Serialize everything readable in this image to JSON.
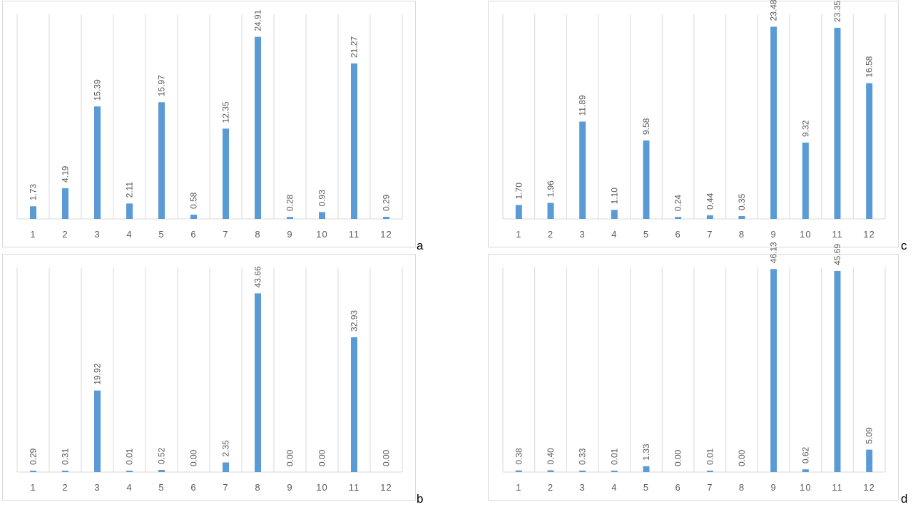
{
  "charts": {
    "a": {
      "panel_label": "a",
      "chart_data": {
        "type": "bar",
        "categories": [
          "1",
          "2",
          "3",
          "4",
          "5",
          "6",
          "7",
          "8",
          "9",
          "10",
          "11",
          "12"
        ],
        "values": [
          1.73,
          4.19,
          15.39,
          2.11,
          15.97,
          0.58,
          12.35,
          24.91,
          0.28,
          0.93,
          21.27,
          0.29
        ],
        "value_labels": [
          "1.73",
          "4.19",
          "15.39",
          "2.11",
          "15.97",
          "0.58",
          "12.35",
          "24.91",
          "0.28",
          "0.93",
          "21.27",
          "0.29"
        ],
        "title": "",
        "xlabel": "",
        "ylabel": "",
        "ylim": [
          0,
          28
        ],
        "grid": "vertical",
        "bar_color": "#5b9bd5"
      }
    },
    "b": {
      "panel_label": "b",
      "chart_data": {
        "type": "bar",
        "categories": [
          "1",
          "2",
          "3",
          "4",
          "5",
          "6",
          "7",
          "8",
          "9",
          "10",
          "11",
          "12"
        ],
        "values": [
          0.29,
          0.31,
          19.92,
          0.01,
          0.52,
          0.0,
          2.35,
          43.66,
          0.0,
          0.0,
          32.93,
          0.0
        ],
        "value_labels": [
          "0.29",
          "0.31",
          "19.92",
          "0.01",
          "0.52",
          "0.00",
          "2.35",
          "43.66",
          "0.00",
          "0.00",
          "32.93",
          "0.00"
        ],
        "title": "",
        "xlabel": "",
        "ylabel": "",
        "ylim": [
          0,
          50
        ],
        "grid": "vertical",
        "bar_color": "#5b9bd5"
      }
    },
    "c": {
      "panel_label": "c",
      "chart_data": {
        "type": "bar",
        "categories": [
          "1",
          "2",
          "3",
          "4",
          "5",
          "6",
          "7",
          "8",
          "9",
          "10",
          "11",
          "12"
        ],
        "values": [
          1.7,
          1.96,
          11.89,
          1.1,
          9.58,
          0.24,
          0.44,
          0.35,
          23.48,
          9.32,
          23.35,
          16.58
        ],
        "value_labels": [
          "1.70",
          "1.96",
          "11.89",
          "1.10",
          "9.58",
          "0.24",
          "0.44",
          "0.35",
          "23.48",
          "9.32",
          "23.35",
          "16.58"
        ],
        "title": "",
        "xlabel": "",
        "ylabel": "",
        "ylim": [
          0,
          25
        ],
        "grid": "vertical",
        "bar_color": "#5b9bd5"
      }
    },
    "d": {
      "panel_label": "d",
      "chart_data": {
        "type": "bar",
        "categories": [
          "1",
          "2",
          "3",
          "4",
          "5",
          "6",
          "7",
          "8",
          "9",
          "10",
          "11",
          "12"
        ],
        "values": [
          0.38,
          0.4,
          0.33,
          0.01,
          1.33,
          0.0,
          0.01,
          0.0,
          46.13,
          0.62,
          45.69,
          5.09
        ],
        "value_labels": [
          "0.38",
          "0.40",
          "0.33",
          "0.01",
          "1.33",
          "0.00",
          "0.01",
          "0.00",
          "46.13",
          "0.62",
          "45.69",
          "5.09"
        ],
        "title": "",
        "xlabel": "",
        "ylabel": "",
        "ylim": [
          0,
          46.5
        ],
        "grid": "vertical",
        "bar_color": "#5b9bd5"
      }
    }
  }
}
